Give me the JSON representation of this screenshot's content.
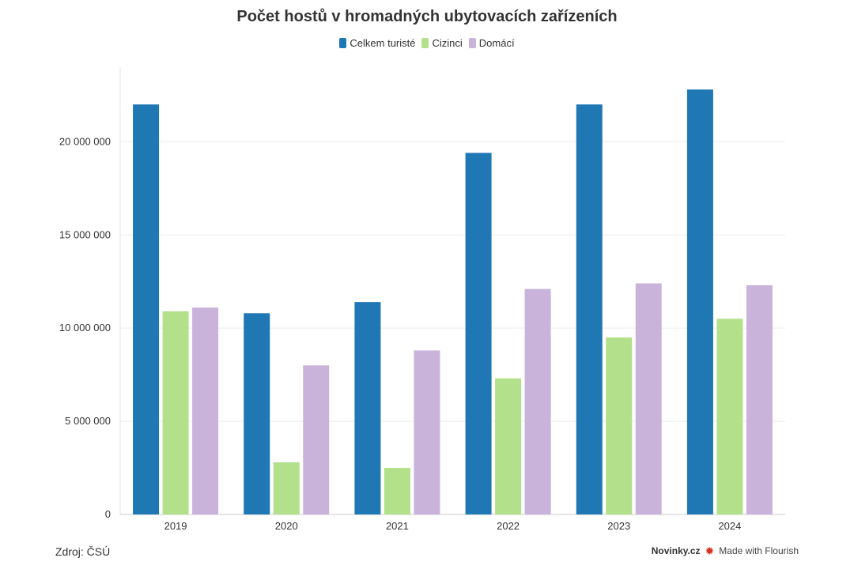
{
  "colors": {
    "total": "#1f77b4",
    "foreign": "#b3e08a",
    "domestic": "#c9b3da"
  },
  "footer": {
    "source": "Zdroj: ČSÚ",
    "brand": "Novinky.cz",
    "made_with": "Made with Flourish",
    "flourish_icon": "flourish-icon"
  },
  "chart_data": {
    "type": "bar",
    "title": "Počet hostů v hromadných ubytovacích zařízeních",
    "legend_position": "top-center",
    "grid": true,
    "categories": [
      "2019",
      "2020",
      "2021",
      "2022",
      "2023",
      "2024"
    ],
    "series": [
      {
        "name": "Celkem turisté",
        "color": "#1f77b4",
        "values": [
          22000000,
          10800000,
          11400000,
          19400000,
          22000000,
          22800000
        ]
      },
      {
        "name": "Cizinci",
        "color": "#b3e08a",
        "values": [
          10900000,
          2800000,
          2500000,
          7300000,
          9500000,
          10500000
        ]
      },
      {
        "name": "Domácí",
        "color": "#c9b3da",
        "values": [
          11100000,
          8000000,
          8800000,
          12100000,
          12400000,
          12300000
        ]
      }
    ],
    "ylim": [
      0,
      24000000
    ],
    "yticks": [
      0,
      5000000,
      10000000,
      15000000,
      20000000
    ],
    "ytick_labels": [
      "0",
      "5 000 000",
      "10 000 000",
      "15 000 000",
      "20 000 000"
    ]
  }
}
